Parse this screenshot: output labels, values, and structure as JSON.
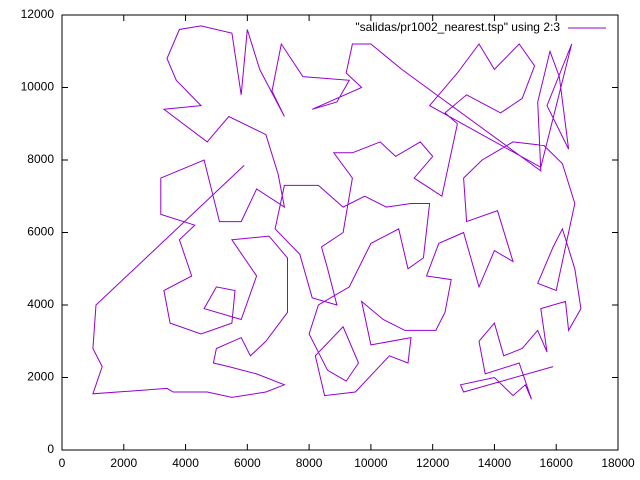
{
  "chart_data": {
    "type": "line",
    "series": [
      {
        "name": "\"salidas/pr1002_nearest.tsp\" using 2:3",
        "color": "#9400d3",
        "x": [
          15900,
          13000,
          12900,
          14000,
          14600,
          15000,
          15200,
          14800,
          13700,
          13500,
          14000,
          14300,
          14900,
          15400,
          15700,
          15500,
          16300,
          16400,
          16800,
          16600,
          16200,
          15900,
          15400,
          16000,
          16600,
          16200,
          15600,
          14600,
          13600,
          13000,
          13100,
          14100,
          14600,
          14000,
          13500,
          13000,
          12200,
          11800,
          12600,
          12400,
          12100,
          11100,
          10400,
          9700,
          10000,
          11300,
          11200,
          10600,
          9500,
          8500,
          8200,
          9100,
          9600,
          9200,
          8600,
          8000,
          8300,
          9300,
          10000,
          10900,
          11200,
          11700,
          11900,
          11300,
          10500,
          9800,
          9100,
          8300,
          7200,
          6900,
          7700,
          8100,
          8900,
          8600,
          8400,
          9100,
          9400,
          8800,
          9400,
          10300,
          10800,
          11600,
          12000,
          11400,
          12300,
          12800,
          12400,
          13100,
          14200,
          14900,
          15300,
          14800,
          14000,
          13500,
          12800,
          11900,
          15500,
          16500,
          15700,
          16400,
          16100,
          15800,
          15400,
          15500,
          11000,
          10000,
          9400,
          9200,
          9700,
          8100,
          8900,
          9300,
          7800,
          7100,
          6800,
          7200,
          6400,
          6000,
          5800,
          5500,
          4500,
          3800,
          3400,
          3700,
          4500,
          3300,
          4700,
          5400,
          6600,
          7000,
          7200,
          6300,
          5800,
          5100,
          4600,
          3200,
          3200,
          4300,
          3800,
          4200,
          3300,
          3500,
          4500,
          5500,
          5600,
          5000,
          4600,
          5800,
          6300,
          5500,
          6700,
          7300,
          7300,
          6600,
          6100,
          5800,
          5000,
          4900,
          5400,
          6300,
          7200,
          6600,
          5500,
          4700,
          3600,
          3400,
          1000,
          1300,
          1000,
          1100,
          5900
        ],
        "values": [
          2300,
          1600,
          1800,
          2000,
          1500,
          1800,
          1400,
          2400,
          2100,
          3000,
          3500,
          2600,
          2800,
          3300,
          2700,
          3900,
          4100,
          3300,
          3900,
          5000,
          6100,
          5600,
          4600,
          4400,
          6800,
          7900,
          8400,
          8500,
          8000,
          7500,
          6300,
          6600,
          5200,
          5500,
          4500,
          6000,
          5700,
          4800,
          4700,
          3800,
          3300,
          3300,
          3600,
          4100,
          2900,
          3100,
          2400,
          2600,
          1600,
          1500,
          2600,
          3400,
          2400,
          1900,
          2200,
          3200,
          4000,
          4500,
          5700,
          6100,
          5000,
          5300,
          6800,
          6800,
          6700,
          7000,
          6700,
          7300,
          7300,
          6100,
          5400,
          4200,
          4000,
          5000,
          5600,
          6000,
          7500,
          8200,
          8200,
          8500,
          8100,
          8500,
          8100,
          7500,
          7000,
          9000,
          9300,
          9800,
          9300,
          9700,
          10600,
          11200,
          10500,
          11200,
          10400,
          9500,
          7800,
          11200,
          9500,
          8300,
          10300,
          11000,
          9600,
          7700,
          10500,
          11200,
          11200,
          10400,
          10000,
          9400,
          9600,
          10200,
          10300,
          11200,
          9900,
          9200,
          10500,
          11600,
          9800,
          11500,
          11700,
          11600,
          10800,
          10200,
          9500,
          9400,
          8500,
          9200,
          8700,
          7600,
          6700,
          7200,
          6300,
          6300,
          8000,
          7500,
          6500,
          6200,
          5800,
          4800,
          4400,
          3500,
          3200,
          3500,
          4400,
          4500,
          3900,
          3600,
          4800,
          5800,
          5900,
          5300,
          3800,
          3000,
          2600,
          3100,
          2800,
          2400,
          2300,
          2100,
          1800,
          1600,
          1450,
          1600,
          1600,
          1700,
          1550,
          2300,
          2800,
          4000,
          7850
        ]
      }
    ],
    "xlim": [
      0,
      18000
    ],
    "ylim": [
      0,
      12000
    ],
    "xticks": [
      0,
      2000,
      4000,
      6000,
      8000,
      10000,
      12000,
      14000,
      16000,
      18000
    ],
    "yticks": [
      0,
      2000,
      4000,
      6000,
      8000,
      10000,
      12000
    ],
    "legend": "top-right"
  }
}
